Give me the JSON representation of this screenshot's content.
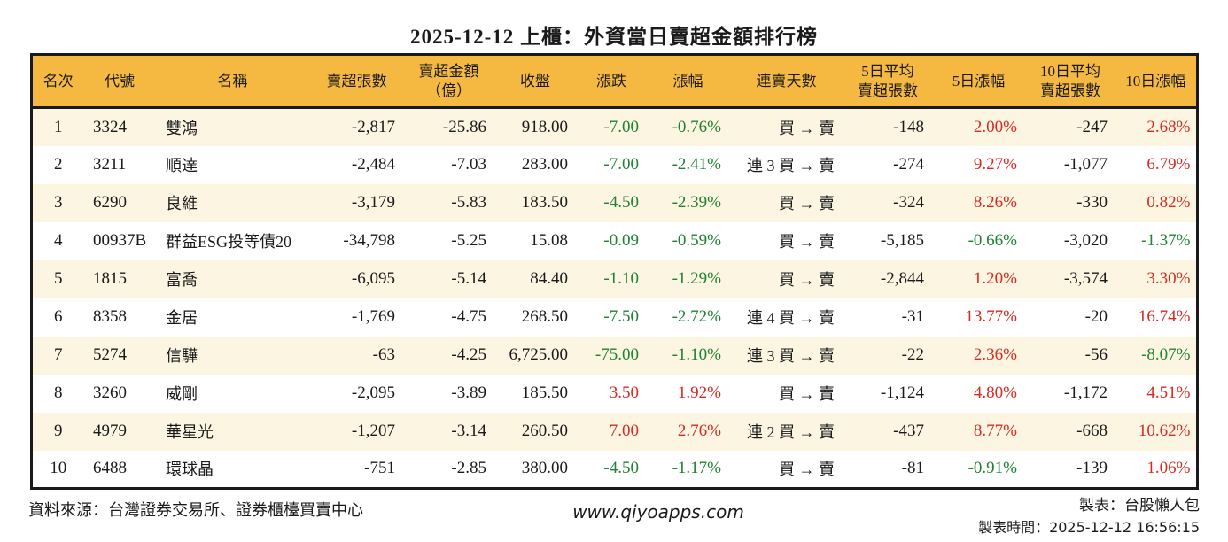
{
  "title": "2025-12-12 上櫃：外資當日賣超金額排行榜",
  "colors": {
    "header_bg": "#F5B942",
    "row_alt_bg": "#FCF5E1",
    "down_green": "#208232",
    "up_red": "#D62B22"
  },
  "table": {
    "columns": [
      {
        "id": "rank",
        "lines": [
          "名次"
        ]
      },
      {
        "id": "code",
        "lines": [
          "代號"
        ]
      },
      {
        "id": "name",
        "lines": [
          "名稱"
        ]
      },
      {
        "id": "sell-volume",
        "lines": [
          "賣超張數"
        ]
      },
      {
        "id": "sell-amount-100m",
        "lines": [
          "賣超金額",
          "（億）"
        ]
      },
      {
        "id": "close",
        "lines": [
          "收盤"
        ]
      },
      {
        "id": "change",
        "lines": [
          "漲跌"
        ]
      },
      {
        "id": "change-pct",
        "lines": [
          "漲幅"
        ]
      },
      {
        "id": "consecutive-days",
        "lines": [
          "連賣天數"
        ]
      },
      {
        "id": "avg5-sell-volume",
        "lines": [
          "5日平均",
          "賣超張數"
        ]
      },
      {
        "id": "change-5d",
        "lines": [
          "5日漲幅"
        ]
      },
      {
        "id": "avg10-sell-volume",
        "lines": [
          "10日平均",
          "賣超張數"
        ]
      },
      {
        "id": "change-10d",
        "lines": [
          "10日漲幅"
        ]
      }
    ],
    "rows": [
      {
        "cells": [
          "1",
          "3324",
          "雙鴻",
          "-2,817",
          "-25.86",
          "918.00",
          "-7.00",
          "-0.76%",
          "買 → 賣",
          "-148",
          "2.00%",
          "-247",
          "2.68%"
        ],
        "colors": [
          "",
          "",
          "",
          "",
          "",
          "",
          "g",
          "g",
          "",
          "",
          "r",
          "",
          "r"
        ]
      },
      {
        "cells": [
          "2",
          "3211",
          "順達",
          "-2,484",
          "-7.03",
          "283.00",
          "-7.00",
          "-2.41%",
          "連 3 買 → 賣",
          "-274",
          "9.27%",
          "-1,077",
          "6.79%"
        ],
        "colors": [
          "",
          "",
          "",
          "",
          "",
          "",
          "g",
          "g",
          "",
          "",
          "r",
          "",
          "r"
        ]
      },
      {
        "cells": [
          "3",
          "6290",
          "良維",
          "-3,179",
          "-5.83",
          "183.50",
          "-4.50",
          "-2.39%",
          "買 → 賣",
          "-324",
          "8.26%",
          "-330",
          "0.82%"
        ],
        "colors": [
          "",
          "",
          "",
          "",
          "",
          "",
          "g",
          "g",
          "",
          "",
          "r",
          "",
          "r"
        ]
      },
      {
        "cells": [
          "4",
          "00937B",
          "群益ESG投等債20",
          "-34,798",
          "-5.25",
          "15.08",
          "-0.09",
          "-0.59%",
          "買 → 賣",
          "-5,185",
          "-0.66%",
          "-3,020",
          "-1.37%"
        ],
        "colors": [
          "",
          "",
          "",
          "",
          "",
          "",
          "g",
          "g",
          "",
          "",
          "g",
          "",
          "g"
        ]
      },
      {
        "cells": [
          "5",
          "1815",
          "富喬",
          "-6,095",
          "-5.14",
          "84.40",
          "-1.10",
          "-1.29%",
          "買 → 賣",
          "-2,844",
          "1.20%",
          "-3,574",
          "3.30%"
        ],
        "colors": [
          "",
          "",
          "",
          "",
          "",
          "",
          "g",
          "g",
          "",
          "",
          "r",
          "",
          "r"
        ]
      },
      {
        "cells": [
          "6",
          "8358",
          "金居",
          "-1,769",
          "-4.75",
          "268.50",
          "-7.50",
          "-2.72%",
          "連 4 買 → 賣",
          "-31",
          "13.77%",
          "-20",
          "16.74%"
        ],
        "colors": [
          "",
          "",
          "",
          "",
          "",
          "",
          "g",
          "g",
          "",
          "",
          "r",
          "",
          "r"
        ]
      },
      {
        "cells": [
          "7",
          "5274",
          "信驊",
          "-63",
          "-4.25",
          "6,725.00",
          "-75.00",
          "-1.10%",
          "連 3 買 → 賣",
          "-22",
          "2.36%",
          "-56",
          "-8.07%"
        ],
        "colors": [
          "",
          "",
          "",
          "",
          "",
          "",
          "g",
          "g",
          "",
          "",
          "r",
          "",
          "g"
        ]
      },
      {
        "cells": [
          "8",
          "3260",
          "威剛",
          "-2,095",
          "-3.89",
          "185.50",
          "3.50",
          "1.92%",
          "買 → 賣",
          "-1,124",
          "4.80%",
          "-1,172",
          "4.51%"
        ],
        "colors": [
          "",
          "",
          "",
          "",
          "",
          "",
          "r",
          "r",
          "",
          "",
          "r",
          "",
          "r"
        ]
      },
      {
        "cells": [
          "9",
          "4979",
          "華星光",
          "-1,207",
          "-3.14",
          "260.50",
          "7.00",
          "2.76%",
          "連 2 買 → 賣",
          "-437",
          "8.77%",
          "-668",
          "10.62%"
        ],
        "colors": [
          "",
          "",
          "",
          "",
          "",
          "",
          "r",
          "r",
          "",
          "",
          "r",
          "",
          "r"
        ]
      },
      {
        "cells": [
          "10",
          "6488",
          "環球晶",
          "-751",
          "-2.85",
          "380.00",
          "-4.50",
          "-1.17%",
          "買 → 賣",
          "-81",
          "-0.91%",
          "-139",
          "1.06%"
        ],
        "colors": [
          "",
          "",
          "",
          "",
          "",
          "",
          "g",
          "g",
          "",
          "",
          "g",
          "",
          "r"
        ]
      }
    ]
  },
  "footer": {
    "source": "資料來源：台灣證券交易所、證券櫃檯買賣中心",
    "website": "www.qiyoapps.com",
    "maker": "製表：台股懶人包",
    "time": "製表時間：2025-12-12 16:56:15"
  }
}
